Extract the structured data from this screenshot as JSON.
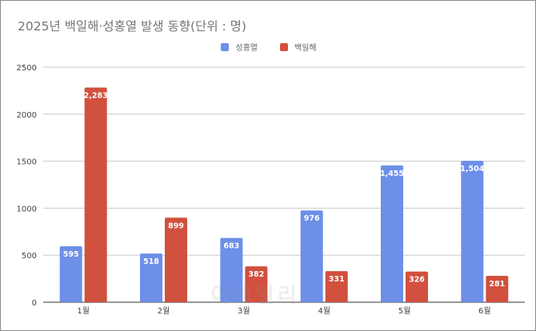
{
  "chart_data": {
    "type": "bar",
    "title": "2025년 백일해·성홍열 발생 동향(단위 : 명)",
    "categories": [
      "1월",
      "2월",
      "3월",
      "4월",
      "5월",
      "6월"
    ],
    "series": [
      {
        "name": "성홍열",
        "color": "#6d8fe8",
        "values": [
          595,
          518,
          683,
          976,
          1455,
          1504
        ],
        "labels": [
          "595",
          "518",
          "683",
          "976",
          "1,455",
          "1,504"
        ]
      },
      {
        "name": "백일해",
        "color": "#d1503e",
        "values": [
          2283,
          899,
          382,
          331,
          326,
          281
        ],
        "labels": [
          "2,283",
          "899",
          "382",
          "331",
          "326",
          "281"
        ]
      }
    ],
    "ylim": [
      0,
      2500
    ],
    "yticks": [
      0,
      500,
      1000,
      1500,
      2000,
      2500
    ],
    "grid": true,
    "legend_position": "top"
  },
  "watermark": "이데일리"
}
